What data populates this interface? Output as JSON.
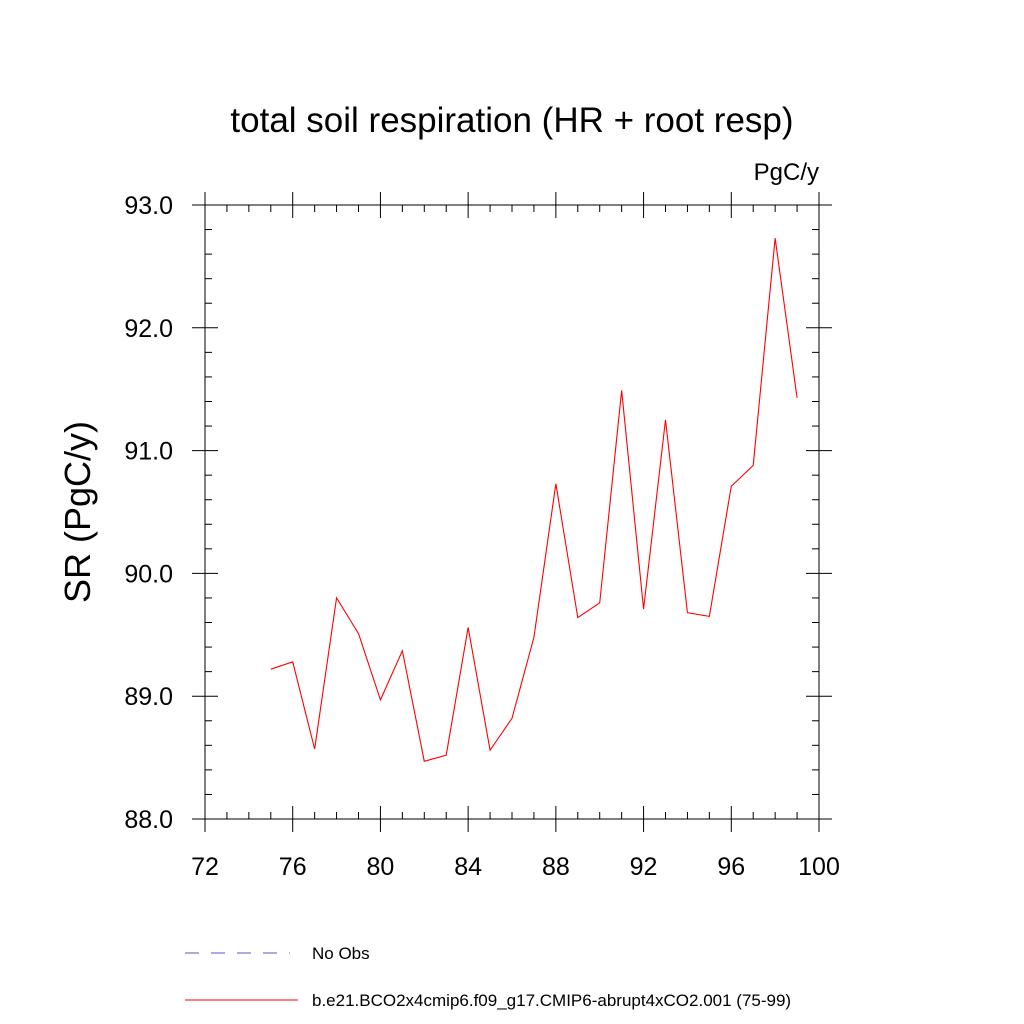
{
  "chart_data": {
    "type": "line",
    "title": "total soil respiration (HR + root resp)",
    "units_label": "PgC/y",
    "ylabel": "SR  (PgC/y)",
    "xlabel": "",
    "xlim": [
      72,
      100
    ],
    "ylim": [
      88.0,
      93.0
    ],
    "x_ticks": [
      72,
      76,
      80,
      84,
      88,
      92,
      96,
      100
    ],
    "x_tick_labels": [
      "72",
      "76",
      "80",
      "84",
      "88",
      "92",
      "96",
      "100"
    ],
    "x_minor_step": 1,
    "y_ticks": [
      88.0,
      89.0,
      90.0,
      91.0,
      92.0,
      93.0
    ],
    "y_tick_labels": [
      "88.0",
      "89.0",
      "90.0",
      "91.0",
      "92.0",
      "93.0"
    ],
    "y_minor_step": 0.2,
    "grid": false,
    "series": [
      {
        "name": "b.e21.BCO2x4cmip6.f09_g17.CMIP6-abrupt4xCO2.001 (75-99)",
        "color": "#ff0000",
        "x": [
          75,
          76,
          77,
          78,
          79,
          80,
          81,
          82,
          83,
          84,
          85,
          86,
          87,
          88,
          89,
          90,
          91,
          92,
          93,
          94,
          95,
          96,
          97,
          98,
          99
        ],
        "y": [
          89.22,
          89.28,
          88.57,
          89.8,
          89.51,
          88.97,
          89.37,
          88.47,
          88.52,
          89.56,
          88.56,
          88.82,
          89.48,
          90.73,
          89.64,
          89.76,
          91.49,
          89.71,
          91.25,
          89.68,
          89.65,
          90.71,
          90.88,
          92.73,
          91.43
        ]
      }
    ],
    "legend": [
      {
        "label": "No Obs",
        "style": "dashed",
        "color": "#5555cc"
      },
      {
        "label": "b.e21.BCO2x4cmip6.f09_g17.CMIP6-abrupt4xCO2.001 (75-99)",
        "style": "solid",
        "color": "#ff0000"
      }
    ],
    "legend_position": "bottom-left"
  }
}
